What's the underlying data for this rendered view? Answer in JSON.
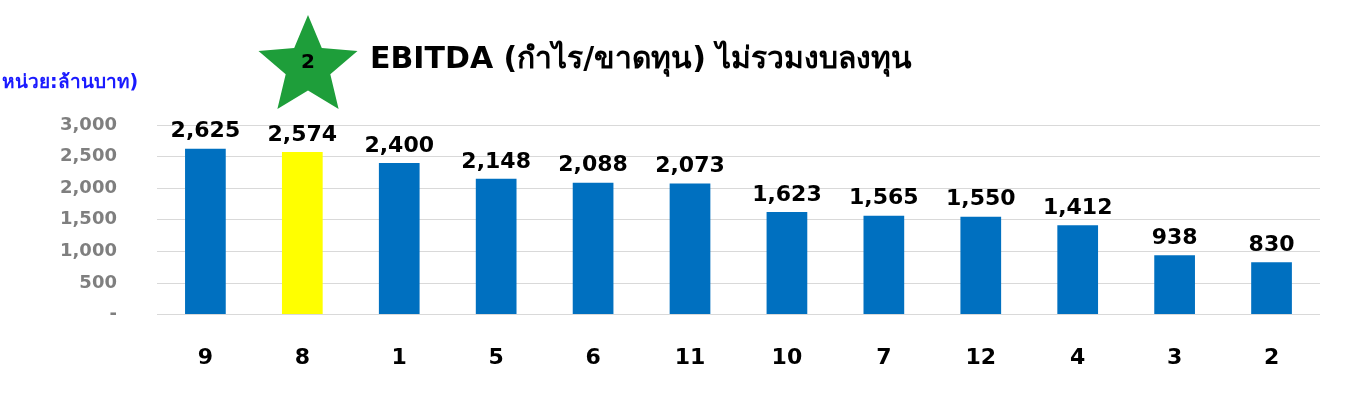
{
  "chart_data": {
    "type": "bar",
    "title": "EBITDA (กำไร/ขาดทุน) ไม่รวมงบลงทุน",
    "ylabel": "หน่วย:ล้านบาท)",
    "categories": [
      "9",
      "8",
      "1",
      "5",
      "6",
      "11",
      "10",
      "7",
      "12",
      "4",
      "3",
      "2"
    ],
    "values": [
      2625,
      2574,
      2400,
      2148,
      2088,
      2073,
      1623,
      1565,
      1550,
      1412,
      938,
      830
    ],
    "colors": [
      "#0070c0",
      "#ffff00",
      "#0070c0",
      "#0070c0",
      "#0070c0",
      "#0070c0",
      "#0070c0",
      "#0070c0",
      "#0070c0",
      "#0070c0",
      "#0070c0",
      "#0070c0"
    ],
    "ylim": [
      0,
      3000
    ],
    "yticks": [
      {
        "value": 0,
        "label": "-"
      },
      {
        "value": 500,
        "label": "500"
      },
      {
        "value": 1000,
        "label": "1,000"
      },
      {
        "value": 1500,
        "label": "1,500"
      },
      {
        "value": 2000,
        "label": "2,000"
      },
      {
        "value": 2500,
        "label": "2,500"
      },
      {
        "value": 3000,
        "label": "3,000"
      }
    ],
    "value_labels": [
      "2,625",
      "2,574",
      "2,400",
      "2,148",
      "2,088",
      "2,073",
      "1,623",
      "1,565",
      "1,550",
      "1,412",
      "938",
      "830"
    ],
    "grid": "y",
    "annotations": [
      "2"
    ]
  }
}
